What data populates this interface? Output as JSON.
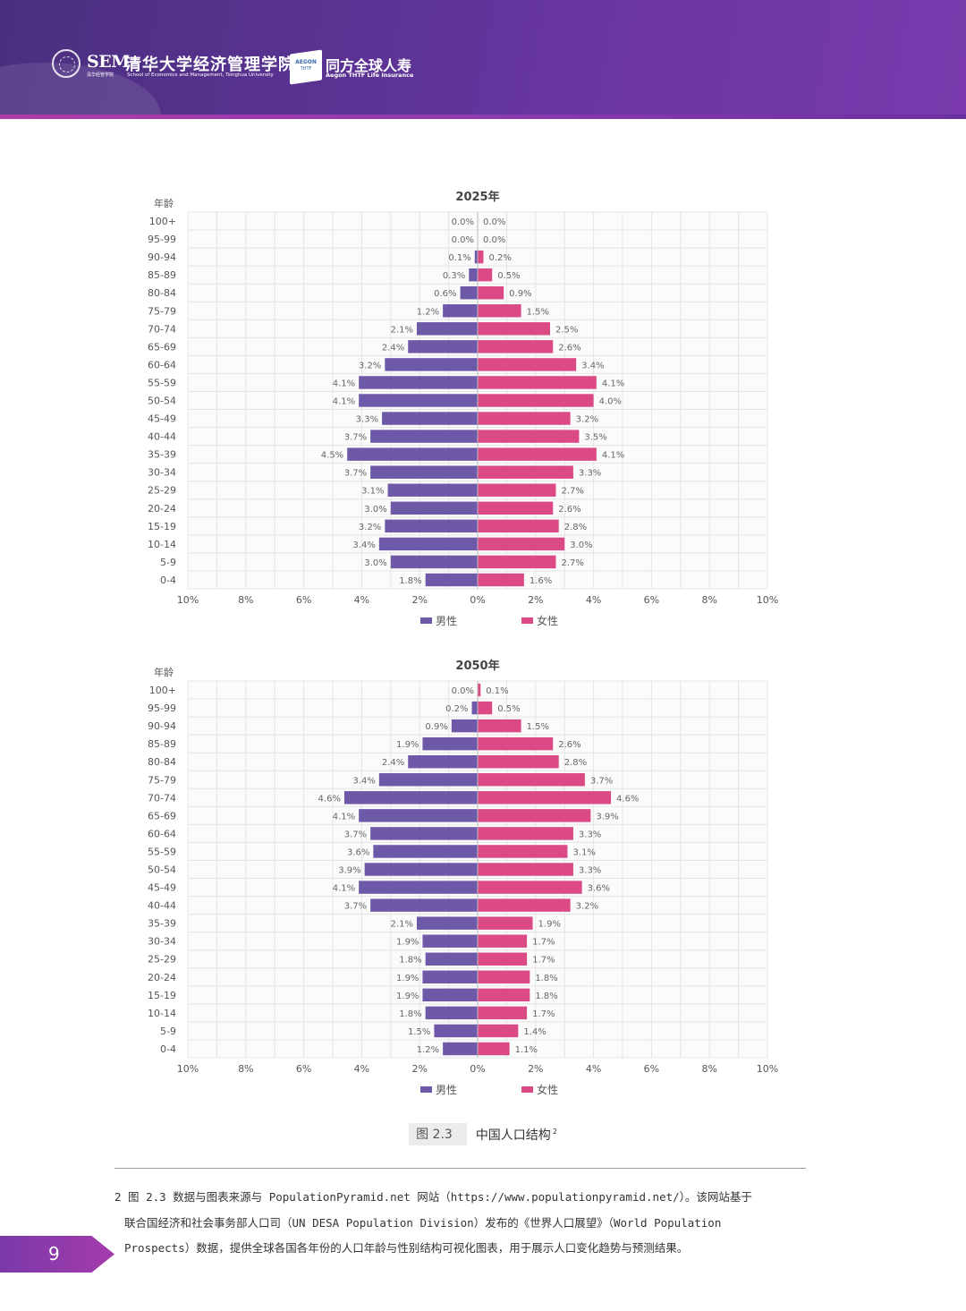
{
  "header": {
    "sem_logo": "SEM",
    "sem_sub": "清华经管学院",
    "school_cn": "清华大学经济管理学院",
    "school_en": "School of Economics and Management, Tsinghua University",
    "partner_logo_line1": "AEGON",
    "partner_logo_line2": "THTF",
    "partner_cn": "同方全球人寿",
    "partner_en": "Aegon THTF Life Insurance"
  },
  "chart_data": [
    {
      "type": "bar",
      "subtype": "population-pyramid",
      "title": "2025年",
      "ylabel": "年龄",
      "categories": [
        "100+",
        "95-99",
        "90-94",
        "85-89",
        "80-84",
        "75-79",
        "70-74",
        "65-69",
        "60-64",
        "55-59",
        "50-54",
        "45-49",
        "40-44",
        "35-39",
        "30-34",
        "25-29",
        "20-24",
        "15-19",
        "10-14",
        "5-9",
        "0-4"
      ],
      "series": [
        {
          "name": "男性",
          "color": "#6e58a8",
          "values": [
            0.0,
            0.0,
            0.1,
            0.3,
            0.6,
            1.2,
            2.1,
            2.4,
            3.2,
            4.1,
            4.1,
            3.3,
            3.7,
            4.5,
            3.7,
            3.1,
            3.0,
            3.2,
            3.4,
            3.0,
            1.8
          ]
        },
        {
          "name": "女性",
          "color": "#dc4a85",
          "values": [
            0.0,
            0.0,
            0.2,
            0.5,
            0.9,
            1.5,
            2.5,
            2.6,
            3.4,
            4.1,
            4.0,
            3.2,
            3.5,
            4.1,
            3.3,
            2.7,
            2.6,
            2.8,
            3.0,
            2.7,
            1.6
          ]
        }
      ],
      "xticks": [
        "10%",
        "8%",
        "6%",
        "4%",
        "2%",
        "0%",
        "2%",
        "4%",
        "6%",
        "8%",
        "10%"
      ],
      "xlim": [
        -10,
        10
      ],
      "grid": true,
      "legend": "bottom-center"
    },
    {
      "type": "bar",
      "subtype": "population-pyramid",
      "title": "2050年",
      "ylabel": "年龄",
      "categories": [
        "100+",
        "95-99",
        "90-94",
        "85-89",
        "80-84",
        "75-79",
        "70-74",
        "65-69",
        "60-64",
        "55-59",
        "50-54",
        "45-49",
        "40-44",
        "35-39",
        "30-34",
        "25-29",
        "20-24",
        "15-19",
        "10-14",
        "5-9",
        "0-4"
      ],
      "series": [
        {
          "name": "男性",
          "color": "#6e58a8",
          "values": [
            0.0,
            0.2,
            0.9,
            1.9,
            2.4,
            3.4,
            4.6,
            4.1,
            3.7,
            3.6,
            3.9,
            4.1,
            3.7,
            2.1,
            1.9,
            1.8,
            1.9,
            1.9,
            1.8,
            1.5,
            1.2
          ]
        },
        {
          "name": "女性",
          "color": "#dc4a85",
          "values": [
            0.1,
            0.5,
            1.5,
            2.6,
            2.8,
            3.7,
            4.6,
            3.9,
            3.3,
            3.1,
            3.3,
            3.6,
            3.2,
            1.9,
            1.7,
            1.7,
            1.8,
            1.8,
            1.7,
            1.4,
            1.1
          ]
        }
      ],
      "xticks": [
        "10%",
        "8%",
        "6%",
        "4%",
        "2%",
        "0%",
        "2%",
        "4%",
        "6%",
        "8%",
        "10%"
      ],
      "xlim": [
        -10,
        10
      ],
      "grid": true,
      "legend": "bottom-center"
    }
  ],
  "caption": {
    "number": "图 2.3",
    "title": "中国人口结构",
    "footnote_ref": "2"
  },
  "footnote": {
    "line1": "2 图 2.3 数据与图表来源与 PopulationPyramid.net 网站（https://www.populationpyramid.net/）。该网站基于",
    "line2": "联合国经济和社会事务部人口司（UN DESA Population Division）发布的《世界人口展望》（World Population",
    "line3": "Prospects）数据，提供全球各国各年份的人口年龄与性别结构可视化图表，用于展示人口变化趋势与预测结果。"
  },
  "page_number": "9"
}
